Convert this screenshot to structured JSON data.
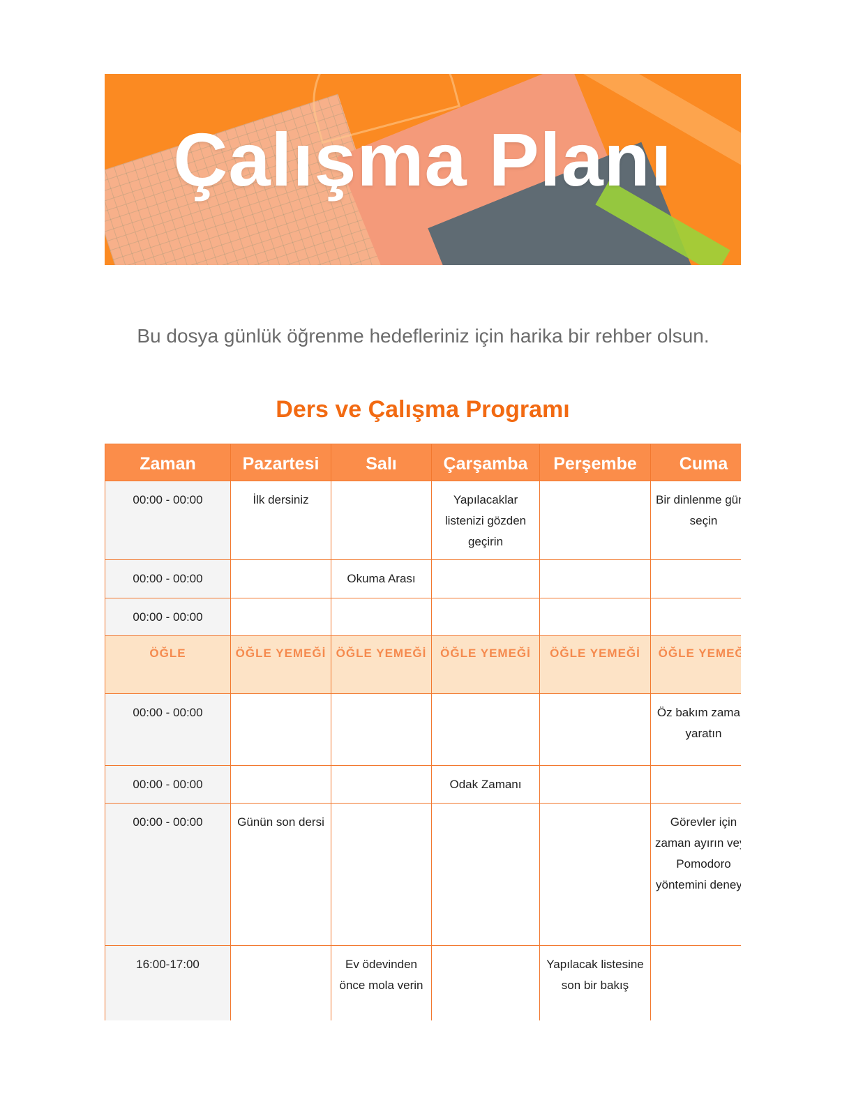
{
  "banner": {
    "title": "Çalışma Planı"
  },
  "subtitle": "Bu dosya günlük öğrenme hedefleriniz için harika bir rehber olsun.",
  "schedule": {
    "heading": "Ders ve Çalışma Programı",
    "columns": [
      "Zaman",
      "Pazartesi",
      "Salı",
      "Çarşamba",
      "Perşembe",
      "Cuma"
    ],
    "rows": [
      {
        "cells": [
          "00:00 - 00:00",
          "İlk dersiniz",
          "",
          "Yapılacaklar listenizi gözden geçirin",
          "",
          "Bir dinlenme günü seçin"
        ]
      },
      {
        "cells": [
          "00:00 - 00:00",
          "",
          "Okuma Arası",
          "",
          "",
          ""
        ]
      },
      {
        "cells": [
          "00:00 - 00:00",
          "",
          "",
          "",
          "",
          ""
        ]
      },
      {
        "lunch": true,
        "cells": [
          "ÖĞLE",
          "ÖĞLE YEMEĞİ",
          "ÖĞLE YEMEĞİ",
          "ÖĞLE YEMEĞİ",
          "ÖĞLE YEMEĞİ",
          "ÖĞLE YEMEĞİ"
        ]
      },
      {
        "cells": [
          "00:00 - 00:00",
          "",
          "",
          "",
          "",
          "Öz bakım zamanı yaratın"
        ]
      },
      {
        "cells": [
          "00:00 - 00:00",
          "",
          "",
          "Odak Zamanı",
          "",
          ""
        ]
      },
      {
        "cells": [
          "00:00 - 00:00",
          "Günün son dersi",
          "",
          "",
          "",
          "Görevler için zaman ayırın veya Pomodoro yöntemini deneyin"
        ]
      },
      {
        "cells": [
          "16:00-17:00",
          "",
          "Ev ödevinden önce mola verin",
          "",
          "Yapılacak listesine son bir bakış",
          ""
        ]
      }
    ]
  },
  "colors": {
    "accent": "#f26a12",
    "header_bg": "#fb8d4a",
    "lunch_bg": "#fde3c6",
    "border": "#f2782e"
  }
}
